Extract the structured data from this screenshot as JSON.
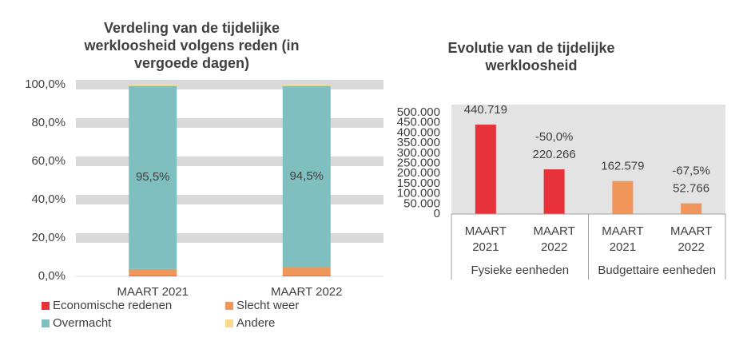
{
  "chart_data": [
    {
      "type": "stacked-bar",
      "title": "Verdeling van de tijdelijke werkloosheid volgens reden (in vergoede dagen)",
      "categories": [
        "MAART 2021",
        "MAART 2022"
      ],
      "series": [
        {
          "name": "Economische redenen",
          "color": "#e8323a",
          "values": [
            0.3,
            0.3
          ]
        },
        {
          "name": "Slecht weer",
          "color": "#f0965a",
          "values": [
            3.5,
            4.5
          ]
        },
        {
          "name": "Overmacht",
          "color": "#7fbfbf",
          "values": [
            95.5,
            94.5
          ],
          "value_labels": [
            "95,5%",
            "94,5%"
          ]
        },
        {
          "name": "Andere",
          "color": "#fad98c",
          "values": [
            0.7,
            0.7
          ]
        }
      ],
      "ylim": [
        0,
        100
      ],
      "yticks": [
        {
          "value": 0,
          "label": "0,0%"
        },
        {
          "value": 20,
          "label": "20,0%"
        },
        {
          "value": 40,
          "label": "40,0%"
        },
        {
          "value": 60,
          "label": "60,0%"
        },
        {
          "value": 80,
          "label": "80,0%"
        },
        {
          "value": 100,
          "label": "100,0%"
        }
      ],
      "grid": true
    },
    {
      "type": "bar",
      "title": "Evolutie van de tijdelijke werkloosheid",
      "categories": [
        "MAART 2021",
        "MAART 2022",
        "MAART 2021",
        "MAART 2022"
      ],
      "groups": [
        "Fysieke eenheden",
        "Budgettaire eenheden"
      ],
      "values": [
        440719,
        220266,
        162579,
        52766
      ],
      "value_labels": [
        "440.719",
        "220.266",
        "162.579",
        "52.766"
      ],
      "annotations": [
        null,
        "-50,0%",
        null,
        "-67,5%"
      ],
      "colors": [
        "#e8323a",
        "#e8323a",
        "#f0965a",
        "#f0965a"
      ],
      "ylim": [
        0,
        500000
      ],
      "yticks": [
        0,
        {
          "value": 50000,
          "label": "50.000"
        },
        {
          "value": 100000,
          "label": "100.000"
        },
        {
          "value": 150000,
          "label": "150.000"
        },
        {
          "value": 200000,
          "label": "200.000"
        },
        {
          "value": 250000,
          "label": "250.000"
        },
        {
          "value": 300000,
          "label": "300.000"
        },
        {
          "value": 350000,
          "label": "350.000"
        },
        {
          "value": 400000,
          "label": "400.000"
        },
        {
          "value": 450000,
          "label": "450.000"
        },
        {
          "value": 500000,
          "label": "500.000"
        }
      ]
    }
  ]
}
